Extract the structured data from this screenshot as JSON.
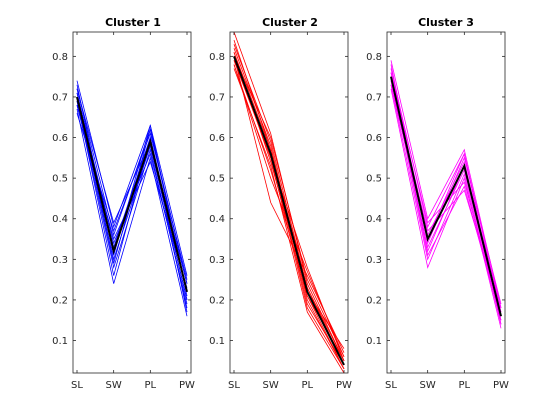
{
  "chart_data": [
    {
      "type": "line",
      "title": "Cluster 1",
      "categories": [
        "SL",
        "SW",
        "PL",
        "PW"
      ],
      "ylim": [
        0.02,
        0.86
      ],
      "yticks": [
        0.1,
        0.2,
        0.3,
        0.4,
        0.5,
        0.6,
        0.7,
        0.8
      ],
      "line_color": "#0000ff",
      "centroid_color": "#000000",
      "centroid": [
        0.7,
        0.32,
        0.59,
        0.22
      ],
      "series": [
        {
          "values": [
            0.74,
            0.38,
            0.63,
            0.26
          ]
        },
        {
          "values": [
            0.72,
            0.36,
            0.62,
            0.24
          ]
        },
        {
          "values": [
            0.71,
            0.33,
            0.6,
            0.22
          ]
        },
        {
          "values": [
            0.7,
            0.3,
            0.58,
            0.2
          ]
        },
        {
          "values": [
            0.69,
            0.28,
            0.57,
            0.18
          ]
        },
        {
          "values": [
            0.67,
            0.24,
            0.55,
            0.16
          ]
        },
        {
          "values": [
            0.68,
            0.35,
            0.54,
            0.23
          ]
        },
        {
          "values": [
            0.66,
            0.37,
            0.61,
            0.25
          ]
        },
        {
          "values": [
            0.73,
            0.31,
            0.63,
            0.21
          ]
        },
        {
          "values": [
            0.71,
            0.34,
            0.56,
            0.19
          ]
        },
        {
          "values": [
            0.69,
            0.26,
            0.6,
            0.17
          ]
        },
        {
          "values": [
            0.72,
            0.39,
            0.59,
            0.24
          ]
        },
        {
          "values": [
            0.7,
            0.29,
            0.62,
            0.22
          ]
        },
        {
          "values": [
            0.68,
            0.32,
            0.58,
            0.2
          ]
        }
      ]
    },
    {
      "type": "line",
      "title": "Cluster 2",
      "categories": [
        "SL",
        "SW",
        "PL",
        "PW"
      ],
      "ylim": [
        0.02,
        0.86
      ],
      "yticks": [
        0.1,
        0.2,
        0.3,
        0.4,
        0.5,
        0.6,
        0.7,
        0.8
      ],
      "line_color": "#ff0000",
      "centroid_color": "#000000",
      "centroid": [
        0.8,
        0.56,
        0.22,
        0.04
      ],
      "series": [
        {
          "values": [
            0.86,
            0.61,
            0.24,
            0.05
          ]
        },
        {
          "values": [
            0.83,
            0.59,
            0.23,
            0.04
          ]
        },
        {
          "values": [
            0.81,
            0.57,
            0.2,
            0.03
          ]
        },
        {
          "values": [
            0.79,
            0.55,
            0.18,
            0.03
          ]
        },
        {
          "values": [
            0.77,
            0.53,
            0.17,
            0.02
          ]
        },
        {
          "values": [
            0.8,
            0.44,
            0.26,
            0.07
          ]
        },
        {
          "values": [
            0.78,
            0.5,
            0.27,
            0.06
          ]
        },
        {
          "values": [
            0.82,
            0.58,
            0.21,
            0.05
          ]
        },
        {
          "values": [
            0.8,
            0.6,
            0.25,
            0.06
          ]
        },
        {
          "values": [
            0.79,
            0.56,
            0.19,
            0.04
          ]
        },
        {
          "values": [
            0.81,
            0.54,
            0.22,
            0.08
          ]
        },
        {
          "values": [
            0.84,
            0.57,
            0.23,
            0.05
          ]
        },
        {
          "values": [
            0.78,
            0.52,
            0.21,
            0.03
          ]
        },
        {
          "values": [
            0.8,
            0.55,
            0.28,
            0.05
          ]
        }
      ]
    },
    {
      "type": "line",
      "title": "Cluster 3",
      "categories": [
        "SL",
        "SW",
        "PL",
        "PW"
      ],
      "ylim": [
        0.02,
        0.86
      ],
      "yticks": [
        0.1,
        0.2,
        0.3,
        0.4,
        0.5,
        0.6,
        0.7,
        0.8
      ],
      "line_color": "#ff00ff",
      "centroid_color": "#000000",
      "centroid": [
        0.75,
        0.35,
        0.53,
        0.16
      ],
      "series": [
        {
          "values": [
            0.79,
            0.4,
            0.57,
            0.18
          ]
        },
        {
          "values": [
            0.77,
            0.38,
            0.56,
            0.17
          ]
        },
        {
          "values": [
            0.76,
            0.36,
            0.54,
            0.16
          ]
        },
        {
          "values": [
            0.74,
            0.33,
            0.52,
            0.15
          ]
        },
        {
          "values": [
            0.73,
            0.3,
            0.51,
            0.14
          ]
        },
        {
          "values": [
            0.72,
            0.28,
            0.5,
            0.13
          ]
        },
        {
          "values": [
            0.75,
            0.31,
            0.48,
            0.15
          ]
        },
        {
          "values": [
            0.74,
            0.37,
            0.47,
            0.17
          ]
        },
        {
          "values": [
            0.78,
            0.34,
            0.55,
            0.19
          ]
        },
        {
          "values": [
            0.76,
            0.39,
            0.49,
            0.16
          ]
        },
        {
          "values": [
            0.73,
            0.35,
            0.56,
            0.14
          ]
        },
        {
          "values": [
            0.75,
            0.32,
            0.53,
            0.18
          ]
        }
      ]
    }
  ]
}
